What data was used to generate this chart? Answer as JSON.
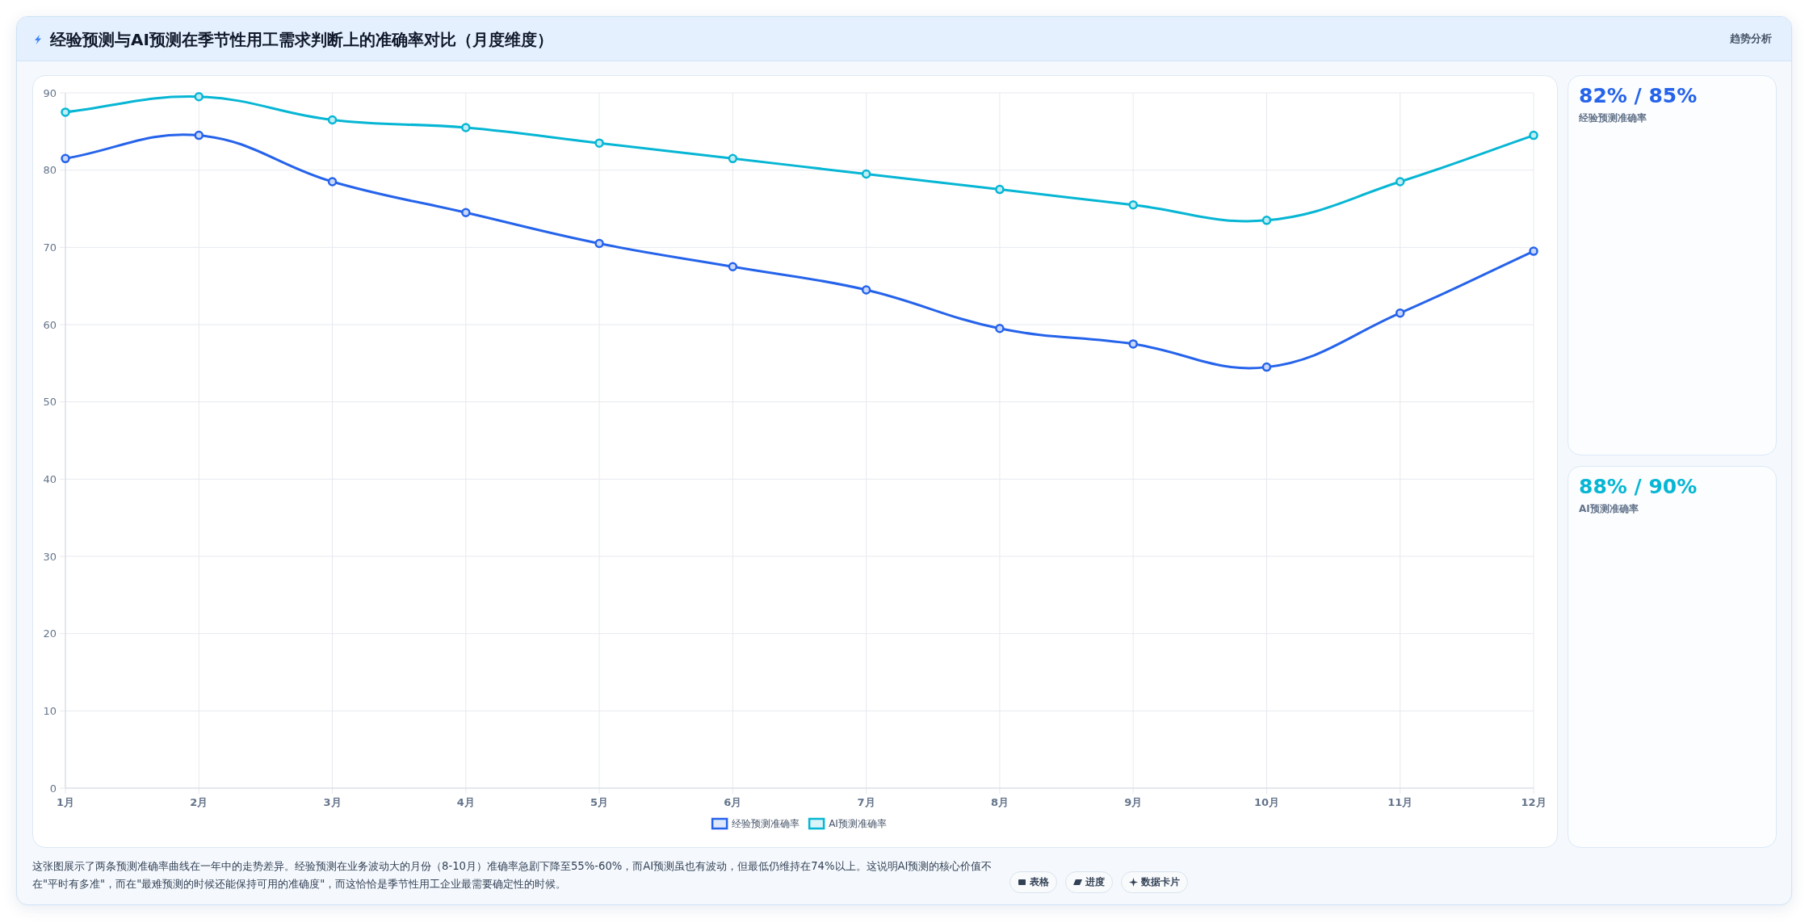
{
  "chart_data": [
    {
      "type": "line",
      "title": "经验预测与AI预测在季节性用工需求判断上的准确率对比（月度维度）",
      "categories": [
        "1月",
        "2月",
        "3月",
        "4月",
        "5月",
        "6月",
        "7月",
        "8月",
        "9月",
        "10月",
        "11月",
        "12月"
      ],
      "series": [
        {
          "name": "经验预测准确率",
          "color": "#2563eb",
          "values": [
            81.5,
            84.5,
            78.5,
            74.5,
            70.5,
            67.5,
            64.5,
            59.5,
            57.5,
            54.5,
            61.5,
            69.5
          ]
        },
        {
          "name": "AI预测准确率",
          "color": "#06b6d4",
          "values": [
            87.5,
            89.5,
            86.5,
            85.5,
            83.5,
            81.5,
            79.5,
            77.5,
            75.5,
            73.5,
            78.5,
            84.5
          ]
        }
      ],
      "ylim": [
        0,
        90
      ],
      "yticks": [
        0,
        10,
        20,
        30,
        40,
        50,
        60,
        70,
        80,
        90
      ],
      "grid": true,
      "legend": "bottom",
      "marker": "circle",
      "line_style": "solid",
      "annotations": [
        "趋势分析",
        "这张图展示了两条预测准确率曲线在一年中的走势差异。经验预测在业务波动大的月份（8-10月）准确率急剧下降至55%-60%，而AI预测虽也有波动，但最低仍维持在74%以上。这说明AI预测的核心价值不在\"平时有多准\"，而在\"最难预测的时候还能保持可用的准确度\"，而这恰恰是季节性用工企业最需要确定性的时候。",
        "表格",
        "进度",
        "数据卡片"
      ]
    },
    {
      "type": "other",
      "title": "82% / 85%",
      "subtitle": "经验预测准确率",
      "color": "#2563eb"
    },
    {
      "type": "other",
      "title": "88% / 90%",
      "subtitle": "AI预测准确率",
      "color": "#06b6d4"
    }
  ]
}
